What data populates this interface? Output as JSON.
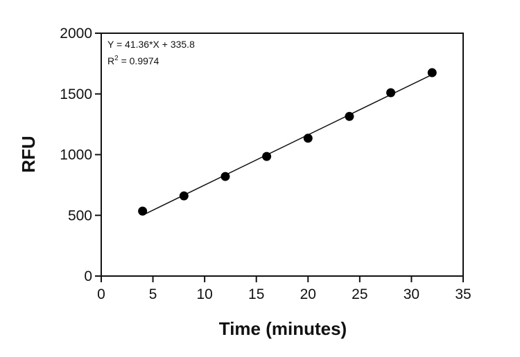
{
  "chart_data": {
    "type": "scatter",
    "xlabel": "Time (minutes)",
    "ylabel": "RFU",
    "xlim": [
      0,
      35
    ],
    "ylim": [
      0,
      2000
    ],
    "xticks": [
      0,
      5,
      10,
      15,
      20,
      25,
      30,
      35
    ],
    "yticks": [
      0,
      500,
      1000,
      1500,
      2000
    ],
    "grid": false,
    "series": [
      {
        "x": [
          4,
          8,
          12,
          16,
          20,
          24,
          28,
          32
        ],
        "y": [
          535,
          660,
          820,
          985,
          1135,
          1315,
          1510,
          1675
        ]
      }
    ],
    "fit": {
      "slope": 41.36,
      "intercept": 335.8,
      "x_range": [
        4,
        32
      ]
    },
    "annotations": {
      "equation": "Y = 41.36*X + 335.8",
      "r2_prefix": "R",
      "r2_exp": "2",
      "r2_value": " = 0.9974"
    }
  }
}
